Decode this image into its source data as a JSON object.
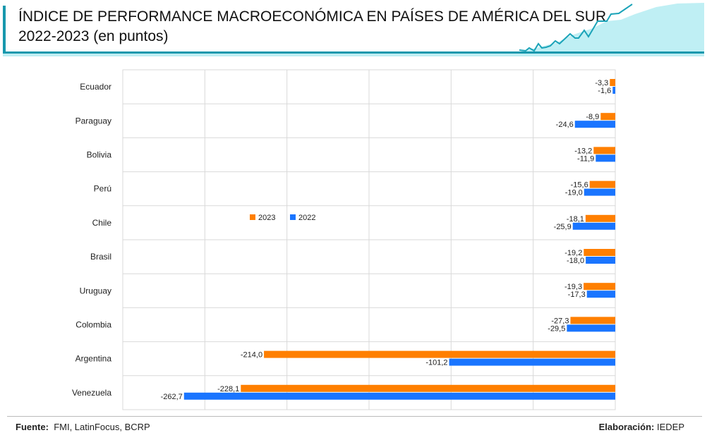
{
  "header": {
    "title_line1": "ÍNDICE DE PERFORMANCE MACROECONÓMICA EN PAÍSES DE AMÉRICA DEL SUR",
    "title_line2": "2022-2023 (en puntos)"
  },
  "chart_data": {
    "type": "bar",
    "orientation": "horizontal",
    "title": "ÍNDICE DE PERFORMANCE MACROECONÓMICA EN PAÍSES DE AMÉRICA DEL SUR 2022-2023 (en puntos)",
    "categories": [
      "Ecuador",
      "Paraguay",
      "Bolivia",
      "Perú",
      "Chile",
      "Brasil",
      "Uruguay",
      "Colombia",
      "Argentina",
      "Venezuela"
    ],
    "series": [
      {
        "name": "2023",
        "color": "#ff7f00",
        "values": [
          -3.3,
          -8.9,
          -13.2,
          -15.6,
          -18.1,
          -19.2,
          -19.3,
          -27.3,
          -214.0,
          -228.1
        ],
        "labels": [
          "-3,3",
          "-8,9",
          "-13,2",
          "-15,6",
          "-18,1",
          "-19,2",
          "-19,3",
          "-27,3",
          "-214,0",
          "-228,1"
        ]
      },
      {
        "name": "2022",
        "color": "#1a75ff",
        "values": [
          -1.6,
          -24.6,
          -11.9,
          -19.0,
          -25.9,
          -18.0,
          -17.3,
          -29.5,
          -101.2,
          -262.7
        ],
        "labels": [
          "-1,6",
          "-24,6",
          "-11,9",
          "-19,0",
          "-25,9",
          "-18,0",
          "-17,3",
          "-29,5",
          "-101,2",
          "-262,7"
        ]
      }
    ],
    "xlim": [
      -300,
      0
    ],
    "grid": true,
    "legend": "center-left"
  },
  "footer": {
    "source_label": "Fuente:",
    "source_text": "FMI, LatinFocus, BCRP",
    "credit_label": "Elaboración:",
    "credit_text": "IEDEP"
  }
}
